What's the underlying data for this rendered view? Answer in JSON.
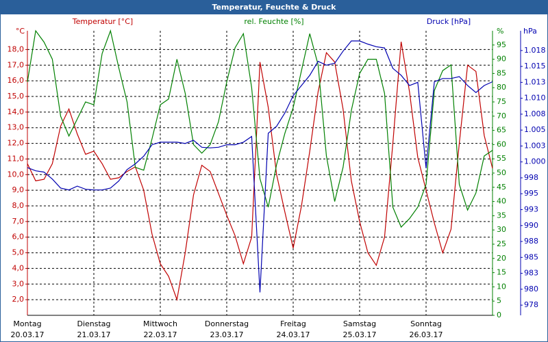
{
  "chart_data": {
    "type": "line",
    "title": "Temperatur, Feuchte & Druck",
    "y_label": "Temperatur [°C]",
    "y_unit": "°C",
    "y2_label": "rel. Feuchte [%]",
    "y2_unit": "%",
    "y3_label": "Druck [hPa]",
    "y3_unit": "hPa",
    "x": [
      0,
      0.125,
      0.25,
      0.375,
      0.5,
      0.625,
      0.75,
      0.875,
      1,
      1.125,
      1.25,
      1.375,
      1.5,
      1.625,
      1.75,
      1.875,
      2,
      2.125,
      2.25,
      2.375,
      2.5,
      2.625,
      2.75,
      2.875,
      3,
      3.125,
      3.25,
      3.375,
      3.5,
      3.625,
      3.75,
      3.875,
      4,
      4.125,
      4.25,
      4.375,
      4.5,
      4.625,
      4.75,
      4.875,
      5,
      5.125,
      5.25,
      5.375,
      5.5,
      5.625,
      5.75,
      5.875,
      6,
      6.125,
      6.25,
      6.375,
      6.5,
      6.625,
      6.75,
      6.875,
      7
    ],
    "xlim": [
      0,
      7
    ],
    "xticks": [
      {
        "value": 0,
        "label": "Montag"
      },
      {
        "value": 1,
        "label": "Dienstag"
      },
      {
        "value": 2,
        "label": "Mittwoch"
      },
      {
        "value": 3,
        "label": "Donnerstag"
      },
      {
        "value": 4,
        "label": "Freitag"
      },
      {
        "value": 5,
        "label": "Samstag"
      },
      {
        "value": 6,
        "label": "Sonntag"
      }
    ],
    "xtick_dates": [
      "20.03.17",
      "21.03.17",
      "22.03.17",
      "23.03.17",
      "24.03.17",
      "25.03.17",
      "26.03.17"
    ],
    "ylim": [
      1.0,
      19.2
    ],
    "yticks": [
      {
        "value": 2,
        "label": "2,0"
      },
      {
        "value": 3,
        "label": "3,0"
      },
      {
        "value": 4,
        "label": "4,0"
      },
      {
        "value": 5,
        "label": "5,0"
      },
      {
        "value": 6,
        "label": "6,0"
      },
      {
        "value": 7,
        "label": "7,0"
      },
      {
        "value": 8,
        "label": "8,0"
      },
      {
        "value": 9,
        "label": "9,0"
      },
      {
        "value": 10,
        "label": "10,0"
      },
      {
        "value": 11,
        "label": "11,0"
      },
      {
        "value": 12,
        "label": "12,0"
      },
      {
        "value": 13,
        "label": "13,0"
      },
      {
        "value": 14,
        "label": "14,0"
      },
      {
        "value": 15,
        "label": "15,0"
      },
      {
        "value": 16,
        "label": "16,0"
      },
      {
        "value": 17,
        "label": "17,0"
      },
      {
        "value": 18,
        "label": "18,0"
      }
    ],
    "y2lim": [
      0,
      100
    ],
    "y2ticks": [
      0,
      5,
      10,
      15,
      20,
      25,
      30,
      35,
      40,
      45,
      50,
      55,
      60,
      65,
      70,
      75,
      80,
      85,
      90,
      95
    ],
    "y3lim": [
      976.4,
      1021.1
    ],
    "y3ticks": [
      978,
      {
        "value": 980.5,
        "label": "980"
      },
      983,
      {
        "value": 985.5,
        "label": "985"
      },
      988,
      {
        "value": 990.5,
        "label": "990"
      },
      993,
      {
        "value": 995.5,
        "label": "995"
      },
      998,
      {
        "value": 1000.5,
        "label": "1.000"
      },
      {
        "value": 1003,
        "label": "1.003"
      },
      {
        "value": 1005.5,
        "label": "1.005"
      },
      {
        "value": 1008,
        "label": "1.008"
      },
      {
        "value": 1010.5,
        "label": "1.010"
      },
      {
        "value": 1013,
        "label": "1.013"
      },
      {
        "value": 1015.5,
        "label": "1.015"
      },
      {
        "value": 1018,
        "label": "1.018"
      }
    ],
    "grid": true,
    "series": [
      {
        "name": "Temperatur",
        "color": "#c00000",
        "axis": "y",
        "values": [
          10.7,
          9.6,
          9.7,
          10.7,
          13.1,
          14.2,
          12.6,
          11.3,
          11.5,
          10.7,
          9.7,
          9.8,
          10.2,
          10.5,
          9.0,
          6.2,
          4.3,
          3.5,
          2.0,
          5.0,
          8.7,
          10.6,
          10.2,
          8.8,
          7.4,
          6.1,
          4.3,
          6.0,
          17.2,
          14.3,
          10.0,
          7.6,
          5.3,
          8.0,
          11.5,
          15.3,
          17.8,
          17.2,
          14.2,
          9.6,
          7.0,
          5.0,
          4.2,
          6.0,
          12.0,
          18.5,
          15.3,
          11.1,
          9.0,
          6.9,
          5.0,
          6.5,
          12.0,
          17.0,
          16.6,
          12.5,
          10.4
        ]
      },
      {
        "name": "rel. Feuchte",
        "color": "#008000",
        "axis": "y2",
        "values": [
          82,
          100,
          96,
          90,
          70,
          63,
          69,
          75,
          74,
          92,
          100,
          87,
          75,
          52,
          51,
          62,
          74,
          76,
          90,
          78,
          60,
          57,
          60,
          68,
          82,
          94,
          99,
          80,
          48,
          38,
          53,
          64,
          73,
          86,
          99,
          88,
          56,
          40,
          52,
          72,
          85,
          90,
          90,
          78,
          38,
          31,
          34,
          38,
          46,
          79,
          86,
          88,
          46,
          37,
          43,
          56,
          58
        ]
      },
      {
        "name": "Druck",
        "color": "#0000b0",
        "axis": "y3",
        "values": [
          999.6,
          999.1,
          998.9,
          997.8,
          996.4,
          996.1,
          996.7,
          996.2,
          996.1,
          996.1,
          996.4,
          997.5,
          999.3,
          1000.2,
          1001.4,
          1003.2,
          1003.6,
          1003.6,
          1003.6,
          1003.4,
          1003.9,
          1002.8,
          1002.7,
          1002.8,
          1003.2,
          1003.2,
          1003.6,
          1004.5,
          980,
          1005,
          1006.1,
          1008.2,
          1010.9,
          1012.5,
          1014.1,
          1016.3,
          1015.7,
          1016.0,
          1017.9,
          1019.5,
          1019.5,
          1019.0,
          1018.6,
          1018.4,
          1015.2,
          1014.1,
          1012.5,
          1013.0,
          999.5,
          1013.1,
          1013.6,
          1013.6,
          1013.9,
          1012.5,
          1011.4,
          1012.5,
          1013.1
        ]
      }
    ]
  }
}
